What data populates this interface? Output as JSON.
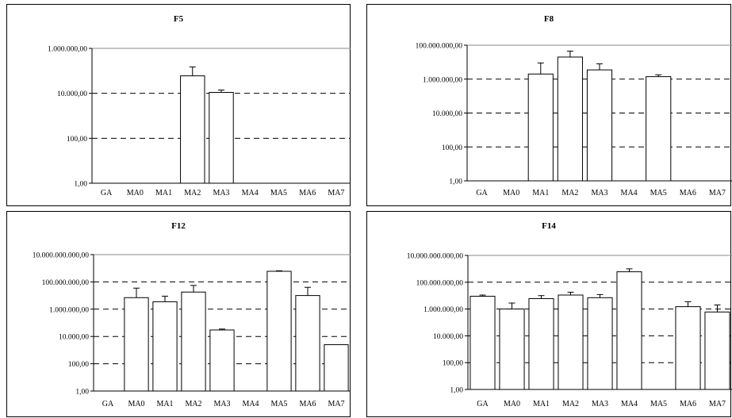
{
  "chart_data": [
    {
      "type": "bar",
      "title": "F5",
      "yscale": "log",
      "ylim": [
        1,
        1000000
      ],
      "grid": "dashed",
      "categories": [
        "GA",
        "MA0",
        "MA1",
        "MA2",
        "MA3",
        "MA4",
        "MA5",
        "MA6",
        "MA7"
      ],
      "yticks": [
        "1.000.000,00",
        "10.000,00",
        "100,00",
        "1,00"
      ],
      "ytick_values": [
        1000000,
        10000,
        100,
        1
      ],
      "values": [
        null,
        null,
        null,
        60000,
        11000,
        null,
        null,
        null,
        null
      ],
      "errors_upper": [
        null,
        null,
        null,
        150000,
        14000,
        null,
        null,
        null,
        null
      ]
    },
    {
      "type": "bar",
      "title": "F8",
      "yscale": "log",
      "ylim": [
        1,
        100000000
      ],
      "grid": "dashed",
      "categories": [
        "GA",
        "MA0",
        "MA1",
        "MA2",
        "MA3",
        "MA4",
        "MA5",
        "MA6",
        "MA7"
      ],
      "yticks": [
        "100.000.000,00",
        "1.000.000,00",
        "10.000,00",
        "100,00",
        "1,00"
      ],
      "ytick_values": [
        100000000,
        1000000,
        10000,
        100,
        1
      ],
      "values": [
        null,
        null,
        2000000,
        20000000,
        3500000,
        null,
        1400000,
        null,
        null
      ],
      "errors_upper": [
        null,
        null,
        9000000,
        45000000,
        8000000,
        null,
        1800000,
        null,
        null
      ]
    },
    {
      "type": "bar",
      "title": "F12",
      "yscale": "log",
      "ylim": [
        1,
        10000000000
      ],
      "grid": "dashed",
      "categories": [
        "GA",
        "MA0",
        "MA1",
        "MA2",
        "MA3",
        "MA4",
        "MA5",
        "MA6",
        "MA7"
      ],
      "yticks": [
        "10.000.000.000,00",
        "100.000.000,00",
        "1.000.000,00",
        "10.000,00",
        "100,00",
        "1,00"
      ],
      "ytick_values": [
        10000000000,
        100000000,
        1000000,
        10000,
        100,
        1
      ],
      "values": [
        null,
        7000000,
        3500000,
        18000000,
        30000,
        null,
        600000000,
        10000000,
        2500
      ],
      "errors_upper": [
        null,
        35000000,
        9000000,
        55000000,
        35000,
        null,
        650000000,
        40000000,
        null
      ]
    },
    {
      "type": "bar",
      "title": "F14",
      "yscale": "log",
      "ylim": [
        1,
        10000000000
      ],
      "grid": "dashed",
      "categories": [
        "GA",
        "MA0",
        "MA1",
        "MA2",
        "MA3",
        "MA4",
        "MA5",
        "MA6",
        "MA7"
      ],
      "yticks": [
        "10.000.000.000,00",
        "100.000.000,00",
        "1.000.000,00",
        "10.000,00",
        "100,00",
        "1,00"
      ],
      "ytick_values": [
        10000000000,
        100000000,
        1000000,
        10000,
        100,
        1
      ],
      "values": [
        9000000,
        1000000,
        6000000,
        11000000,
        7000000,
        600000000,
        null,
        1500000,
        600000
      ],
      "errors_upper": [
        11000000,
        2800000,
        10000000,
        18000000,
        12000000,
        1000000000,
        null,
        3500000,
        2000000
      ]
    }
  ]
}
